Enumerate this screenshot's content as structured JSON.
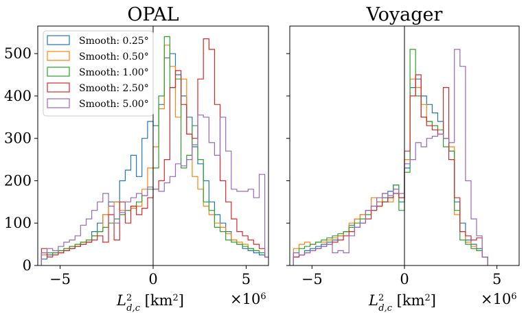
{
  "chart_data": [
    {
      "type": "histogram-step",
      "title": "OPAL",
      "xlabel": "L²_{d,c} [km²]",
      "xlabel_main": "L",
      "xlabel_sup": "2",
      "xlabel_sub": "d,c",
      "xlabel_unit": " [km",
      "xlabel_unit_sup": "2",
      "xlabel_unit_close": "]",
      "x_scale_text": "×10",
      "x_scale_exp": "6",
      "xlim": [
        -6.2,
        6.2
      ],
      "ylim": [
        0,
        565
      ],
      "xticks": [
        -5,
        0,
        5
      ],
      "xtick_labels": [
        "−5",
        "0",
        "5"
      ],
      "yticks": [
        0,
        100,
        200,
        300,
        400,
        500
      ],
      "ytick_labels": [
        "0",
        "100",
        "200",
        "300",
        "400",
        "500"
      ],
      "bin_start": -6.0,
      "bin_width": 0.3,
      "vline_x": 0,
      "series": [
        {
          "name": "Smooth: 0.25°",
          "color": "#1f77b4",
          "values": [
            15,
            25,
            30,
            30,
            35,
            40,
            45,
            50,
            55,
            80,
            100,
            120,
            150,
            150,
            200,
            225,
            260,
            210,
            300,
            340,
            330,
            380,
            490,
            500,
            450,
            400,
            350,
            280,
            240,
            200,
            150,
            120,
            100,
            80,
            60,
            50,
            40,
            35,
            30,
            25,
            20
          ]
        },
        {
          "name": "Smooth: 0.50°",
          "color": "#ff7f0e",
          "values": [
            25,
            30,
            30,
            35,
            40,
            45,
            50,
            55,
            60,
            70,
            80,
            120,
            140,
            150,
            130,
            130,
            135,
            140,
            180,
            230,
            280,
            370,
            520,
            470,
            350,
            440,
            310,
            210,
            180,
            140,
            120,
            100,
            90,
            75,
            60,
            55,
            50,
            40,
            35,
            30,
            20
          ]
        },
        {
          "name": "Smooth: 1.00°",
          "color": "#2ca02c",
          "values": [
            30,
            30,
            30,
            35,
            40,
            45,
            50,
            55,
            60,
            70,
            80,
            90,
            100,
            110,
            120,
            130,
            140,
            150,
            165,
            180,
            230,
            400,
            540,
            420,
            440,
            230,
            260,
            330,
            250,
            150,
            130,
            90,
            80,
            60,
            55,
            50,
            45,
            40,
            35,
            30,
            20
          ]
        },
        {
          "name": "Smooth: 2.50°",
          "color": "#d62728",
          "values": [
            40,
            20,
            25,
            30,
            35,
            40,
            45,
            50,
            55,
            60,
            70,
            55,
            120,
            60,
            150,
            100,
            140,
            120,
            135,
            160,
            180,
            200,
            250,
            420,
            460,
            380,
            310,
            300,
            440,
            535,
            510,
            380,
            200,
            150,
            110,
            80,
            70,
            60,
            50,
            40,
            20
          ]
        },
        {
          "name": "Smooth: 5.00°",
          "color": "#9467bd",
          "values": [
            30,
            40,
            35,
            45,
            55,
            60,
            70,
            95,
            110,
            130,
            150,
            170,
            140,
            100,
            125,
            150,
            160,
            170,
            165,
            185,
            180,
            175,
            195,
            210,
            240,
            235,
            250,
            285,
            355,
            350,
            290,
            260,
            350,
            270,
            180,
            175,
            175,
            180,
            160,
            215,
            20
          ]
        }
      ],
      "legend": {
        "location": "top-left",
        "entries": [
          "Smooth: 0.25°",
          "Smooth: 0.50°",
          "Smooth: 1.00°",
          "Smooth: 2.50°",
          "Smooth: 5.00°"
        ]
      }
    },
    {
      "type": "histogram-step",
      "title": "Voyager",
      "xlabel": "L²_{d,c} [km²]",
      "xlabel_main": "L",
      "xlabel_sup": "2",
      "xlabel_sub": "d,c",
      "xlabel_unit": " [km",
      "xlabel_unit_sup": "2",
      "xlabel_unit_close": "]",
      "x_scale_text": "×10",
      "x_scale_exp": "6",
      "xlim": [
        -6.2,
        6.2
      ],
      "ylim": [
        0,
        565
      ],
      "xticks": [
        -5,
        0,
        5
      ],
      "xtick_labels": [
        "−5",
        "0",
        "5"
      ],
      "yticks": [
        0,
        100,
        200,
        300,
        400,
        500
      ],
      "vline_x": 0,
      "bin_start": -6.0,
      "bin_width": 0.3,
      "series": [
        {
          "name": "Smooth: 0.25°",
          "color": "#1f77b4",
          "values": [
            20,
            25,
            35,
            40,
            45,
            50,
            55,
            60,
            70,
            80,
            95,
            110,
            120,
            130,
            140,
            150,
            160,
            175,
            190,
            150,
            230,
            420,
            440,
            400,
            380,
            360,
            340,
            300,
            270,
            150,
            100,
            60,
            50,
            40,
            20
          ]
        },
        {
          "name": "Smooth: 0.50°",
          "color": "#ff7f0e",
          "values": [
            40,
            50,
            55,
            50,
            55,
            55,
            60,
            65,
            70,
            80,
            100,
            110,
            120,
            130,
            160,
            150,
            170,
            150,
            180,
            160,
            250,
            440,
            420,
            380,
            340,
            330,
            310,
            300,
            280,
            120,
            80,
            55,
            45,
            35,
            20
          ]
        },
        {
          "name": "Smooth: 1.00°",
          "color": "#2ca02c",
          "values": [
            30,
            40,
            45,
            50,
            55,
            60,
            65,
            70,
            75,
            80,
            90,
            100,
            110,
            120,
            130,
            140,
            150,
            160,
            190,
            130,
            220,
            510,
            400,
            350,
            340,
            330,
            320,
            280,
            270,
            130,
            60,
            50,
            40,
            35,
            20
          ]
        },
        {
          "name": "Smooth: 2.50°",
          "color": "#d62728",
          "values": [
            20,
            25,
            30,
            35,
            40,
            45,
            50,
            55,
            60,
            70,
            80,
            90,
            100,
            110,
            130,
            140,
            150,
            160,
            170,
            160,
            270,
            400,
            450,
            350,
            330,
            320,
            310,
            420,
            250,
            160,
            80,
            70,
            60,
            65,
            20
          ]
        },
        {
          "name": "Smooth: 5.00°",
          "color": "#9467bd",
          "values": [
            30,
            25,
            30,
            35,
            40,
            45,
            50,
            30,
            35,
            30,
            70,
            90,
            100,
            130,
            140,
            160,
            170,
            165,
            180,
            170,
            240,
            250,
            290,
            280,
            300,
            305,
            310,
            300,
            290,
            510,
            470,
            200,
            110,
            70,
            20
          ]
        }
      ]
    }
  ]
}
